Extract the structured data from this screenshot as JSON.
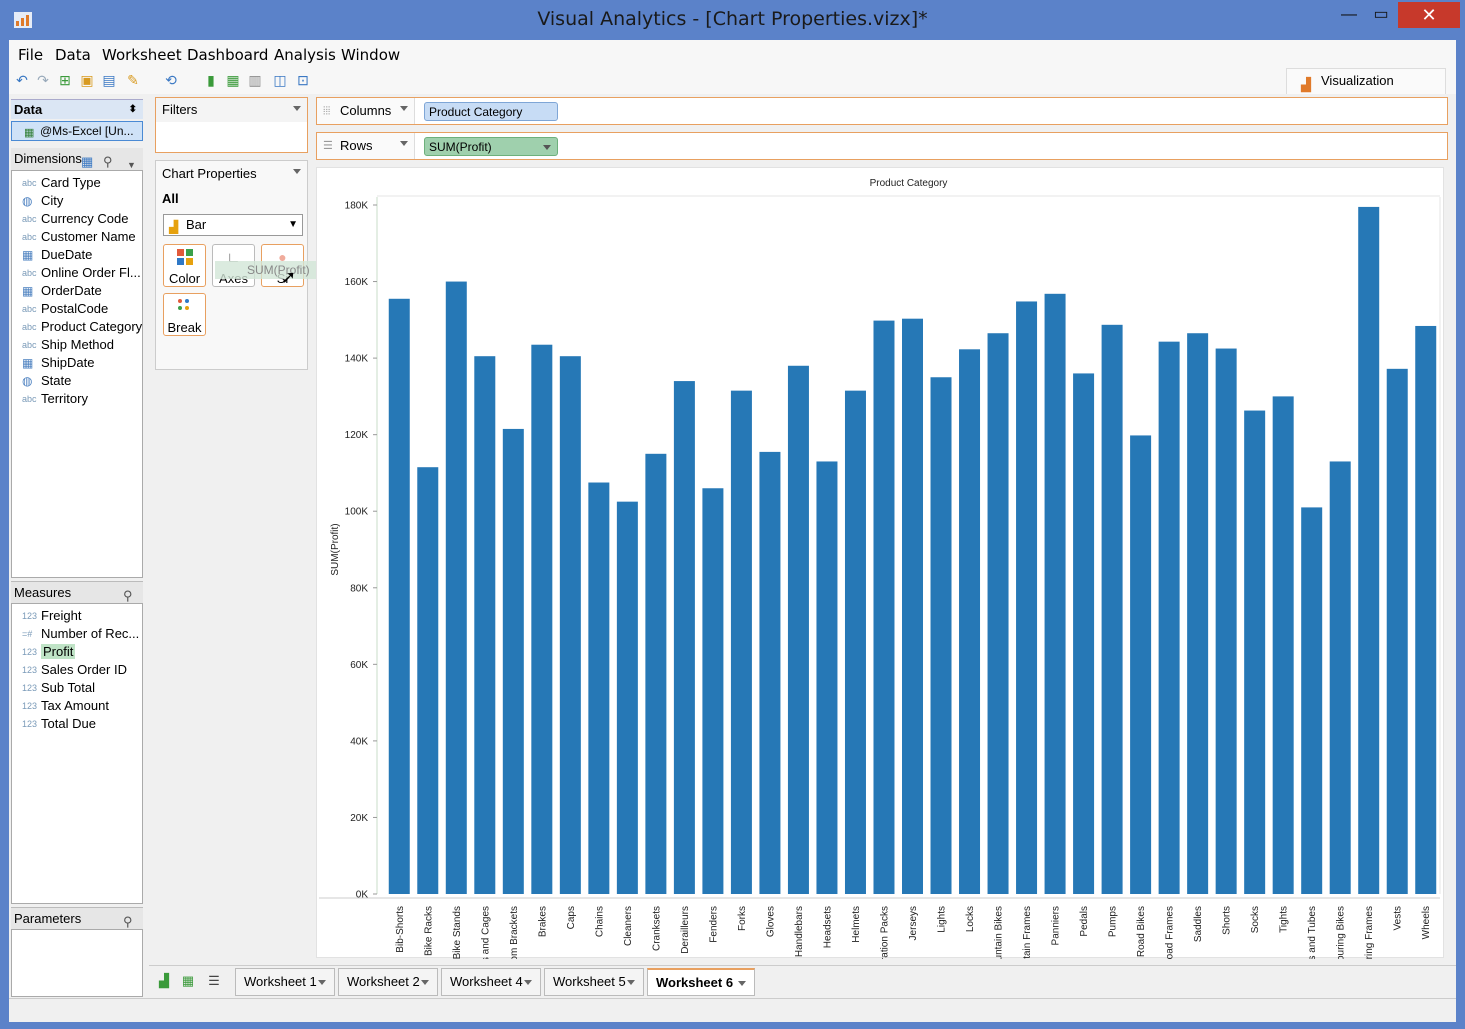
{
  "window": {
    "title": "Visual Analytics - [Chart Properties.vizx]*",
    "controls": {
      "minimize": "—",
      "maximize": "▭",
      "close": "✕"
    }
  },
  "menu": [
    "File",
    "Data",
    "Worksheet",
    "Dashboard",
    "Analysis",
    "Window"
  ],
  "toolbar": {
    "icons": [
      "undo-icon",
      "redo-icon",
      "new-icon",
      "open-icon",
      "save-icon",
      "format-icon",
      "refresh-icon",
      "add-chart-icon",
      "add-series-icon",
      "chart-icon",
      "pin-icon",
      "export-icon"
    ]
  },
  "viz_tab": {
    "label": "Visualization"
  },
  "data_panel": {
    "title": "Data",
    "datasource": "@Ms-Excel [Un...",
    "dimensions_title": "Dimensions",
    "dimensions": [
      {
        "type": "abc",
        "label": "Card Type"
      },
      {
        "type": "geo",
        "label": "City"
      },
      {
        "type": "abc",
        "label": "Currency Code"
      },
      {
        "type": "abc",
        "label": "Customer Name"
      },
      {
        "type": "date",
        "label": "DueDate"
      },
      {
        "type": "abc",
        "label": "Online Order Fl..."
      },
      {
        "type": "date",
        "label": "OrderDate"
      },
      {
        "type": "abc",
        "label": "PostalCode"
      },
      {
        "type": "abc",
        "label": "Product Category"
      },
      {
        "type": "abc",
        "label": "Ship Method"
      },
      {
        "type": "date",
        "label": "ShipDate"
      },
      {
        "type": "geo",
        "label": "State"
      },
      {
        "type": "abc",
        "label": "Territory"
      }
    ],
    "measures_title": "Measures",
    "measures": [
      {
        "type": "123",
        "label": "Freight"
      },
      {
        "type": "fx",
        "label": "Number of Rec..."
      },
      {
        "type": "123",
        "label": "Profit",
        "selected": true
      },
      {
        "type": "123",
        "label": "Sales Order ID"
      },
      {
        "type": "123",
        "label": "Sub Total"
      },
      {
        "type": "123",
        "label": "Tax Amount"
      },
      {
        "type": "123",
        "label": "Total Due"
      }
    ],
    "parameters_title": "Parameters"
  },
  "filters": {
    "title": "Filters"
  },
  "chart_properties": {
    "title": "Chart Properties",
    "scope": "All",
    "chart_type": "Bar",
    "cards": [
      "Color",
      "Axes",
      "Si",
      "Break"
    ],
    "drag_ghost": "SUM(Profit)"
  },
  "shelves": {
    "columns_label": "Columns",
    "columns_pill": "Product Category",
    "rows_label": "Rows",
    "rows_pill": "SUM(Profit)"
  },
  "colors": {
    "bar": "#2678b6",
    "accent": "#e8a060"
  },
  "chart_data": {
    "type": "bar",
    "title": "Product Category",
    "xlabel": "",
    "ylabel": "SUM(Profit)",
    "ylim": [
      0,
      180000
    ],
    "yticks": [
      0,
      20000,
      40000,
      60000,
      80000,
      100000,
      120000,
      140000,
      160000,
      180000
    ],
    "ytick_labels": [
      "0K",
      "20K",
      "40K",
      "60K",
      "80K",
      "100K",
      "120K",
      "140K",
      "160K",
      "180K"
    ],
    "grid": false,
    "categories": [
      "Bib-Shorts",
      "Bike Racks",
      "Bike Stands",
      "Bottles and Cages",
      "Bottom Brackets",
      "Brakes",
      "Caps",
      "Chains",
      "Cleaners",
      "Cranksets",
      "Derailleurs",
      "Fenders",
      "Forks",
      "Gloves",
      "Handlebars",
      "Headsets",
      "Helmets",
      "Hydration Packs",
      "Jerseys",
      "Lights",
      "Locks",
      "Mountain Bikes",
      "Mountain Frames",
      "Panniers",
      "Pedals",
      "Pumps",
      "Road Bikes",
      "Road Frames",
      "Saddles",
      "Shorts",
      "Socks",
      "Tights",
      "Tires and Tubes",
      "Touring Bikes",
      "Touring Frames",
      "Vests",
      "Wheels"
    ],
    "values": [
      155500,
      111500,
      160000,
      140500,
      121500,
      143500,
      140500,
      107500,
      102500,
      115000,
      134000,
      106000,
      131500,
      115500,
      138000,
      113000,
      131500,
      149800,
      150300,
      135000,
      142300,
      146500,
      154800,
      156800,
      136000,
      148700,
      119800,
      144300,
      146500,
      142500,
      126300,
      130000,
      101000,
      113000,
      179500,
      137200,
      148400
    ]
  },
  "worksheets": {
    "tabs": [
      "Worksheet 1",
      "Worksheet 2",
      "Worksheet 4",
      "Worksheet 5",
      "Worksheet 6"
    ],
    "active": "Worksheet 6"
  }
}
